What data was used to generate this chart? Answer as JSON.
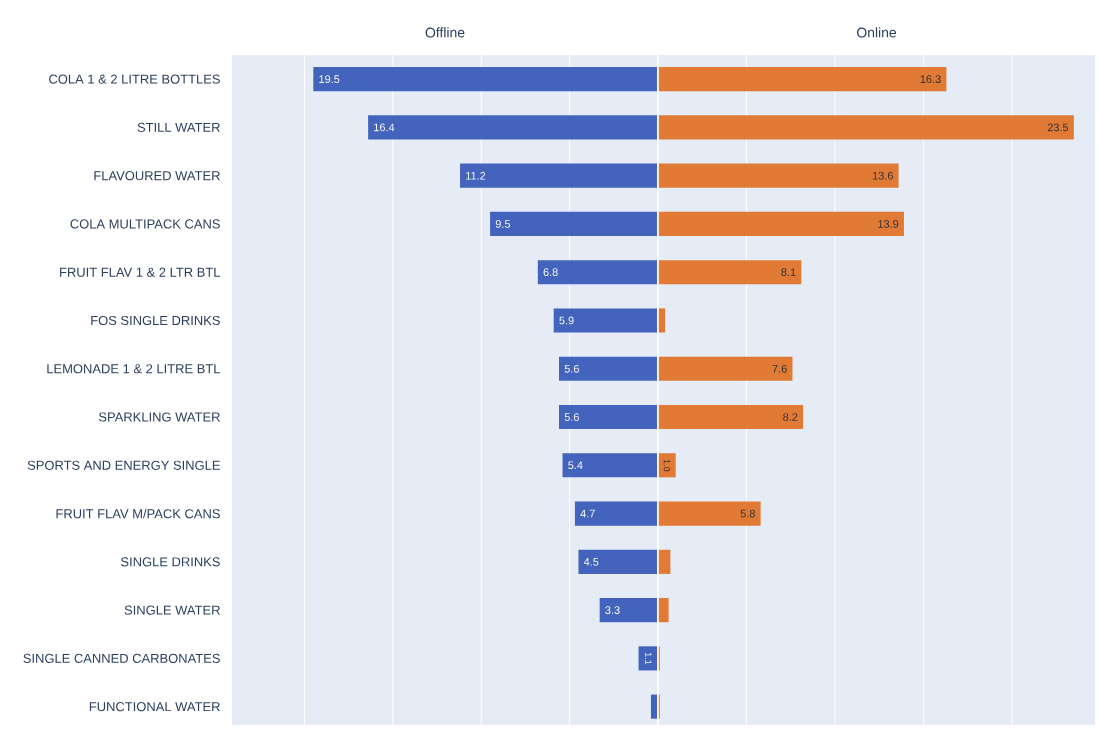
{
  "chart_data": [
    {
      "type": "bar",
      "orientation": "horizontal",
      "title": "Offline",
      "categories": [
        "COLA 1 & 2 LITRE BOTTLES",
        "STILL WATER",
        "FLAVOURED WATER",
        "COLA MULTIPACK CANS",
        "FRUIT FLAV 1 & 2 LTR BTL",
        "FOS SINGLE DRINKS",
        "LEMONADE 1 & 2 LITRE BTL",
        "SPARKLING WATER",
        "SPORTS AND ENERGY SINGLE",
        "FRUIT FLAV M/PACK CANS",
        "SINGLE DRINKS",
        "SINGLE WATER",
        "SINGLE CANNED CARBONATES",
        "FUNCTIONAL WATER"
      ],
      "values": [
        19.5,
        16.4,
        11.2,
        9.5,
        6.8,
        5.9,
        5.6,
        5.6,
        5.4,
        4.7,
        4.5,
        3.3,
        1.1,
        0.4
      ],
      "value_labels": [
        "19.5",
        "16.4",
        "11.2",
        "9.5",
        "6.8",
        "5.9",
        "5.6",
        "5.6",
        "5.4",
        "4.7",
        "4.5",
        "3.3",
        "1.1",
        null
      ],
      "color": "#4363bc",
      "xlim": [
        24.1,
        0
      ],
      "xticks": [
        {
          "value": 0,
          "label": null
        },
        {
          "value": 5,
          "label": null
        },
        {
          "value": 10,
          "label": null
        },
        {
          "value": 15,
          "label": null
        },
        {
          "value": 20,
          "label": null
        }
      ],
      "grid": "x",
      "tick_labels": "y"
    },
    {
      "type": "bar",
      "orientation": "horizontal",
      "title": "Online",
      "categories": [
        null,
        null,
        null,
        null,
        null,
        null,
        null,
        null,
        null,
        null,
        null,
        null,
        null,
        null
      ],
      "values": [
        16.3,
        23.5,
        13.6,
        13.9,
        8.1,
        0.4,
        7.6,
        8.2,
        1.0,
        5.8,
        0.7,
        0.6,
        0.1,
        0.1
      ],
      "value_labels": [
        "16.3",
        "23.5",
        "13.6",
        "13.9",
        "8.1",
        null,
        "7.6",
        "8.2",
        "1.0",
        "5.8",
        null,
        null,
        null,
        null
      ],
      "color": "#e07a35",
      "xlim": [
        0,
        24.7
      ],
      "xticks": [
        {
          "value": 0,
          "label": null
        },
        {
          "value": 5,
          "label": null
        },
        {
          "value": 10,
          "label": null
        },
        {
          "value": 15,
          "label": null
        },
        {
          "value": 20,
          "label": null
        }
      ],
      "grid": "x",
      "tick_labels": false
    }
  ]
}
